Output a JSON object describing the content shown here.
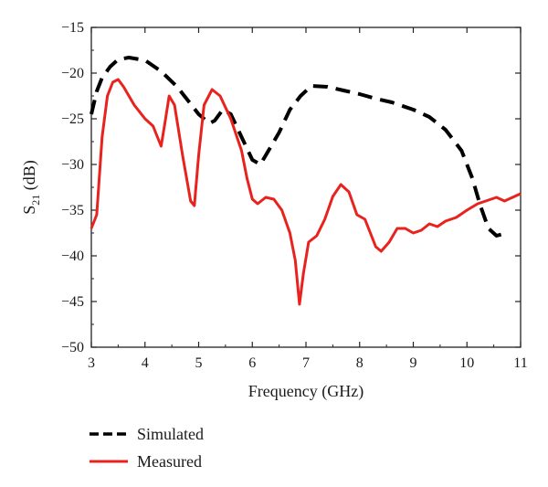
{
  "chart_data": {
    "type": "line",
    "xlabel": "Frequency (GHz)",
    "ylabel": {
      "main": "S",
      "sub": "21",
      "unit": " (dB)"
    },
    "xlim": [
      3,
      11
    ],
    "ylim": [
      -50,
      -15
    ],
    "xticks": [
      "3",
      "4",
      "5",
      "6",
      "7",
      "8",
      "9",
      "10",
      "11"
    ],
    "yticks": [
      "−15",
      "−20",
      "−25",
      "−30",
      "−35",
      "−40",
      "−45",
      "−50"
    ],
    "grid": false,
    "legend_position": "bottom-left",
    "series": [
      {
        "name": "Simulated",
        "color": "#000000",
        "dash": "dashed",
        "x": [
          3.0,
          3.1,
          3.2,
          3.35,
          3.5,
          3.7,
          4.0,
          4.3,
          4.6,
          4.8,
          5.0,
          5.2,
          5.3,
          5.45,
          5.6,
          5.8,
          6.0,
          6.15,
          6.3,
          6.5,
          6.7,
          6.9,
          7.1,
          7.4,
          7.7,
          8.0,
          8.3,
          8.6,
          9.0,
          9.3,
          9.6,
          9.9,
          10.1,
          10.25,
          10.4,
          10.55,
          10.75
        ],
        "y": [
          -24.5,
          -22.0,
          -20.5,
          -19.3,
          -18.5,
          -18.3,
          -18.6,
          -19.8,
          -21.5,
          -23.0,
          -24.5,
          -25.5,
          -25.2,
          -24.0,
          -24.5,
          -27.0,
          -29.5,
          -30.0,
          -28.5,
          -26.5,
          -24.0,
          -22.5,
          -21.4,
          -21.5,
          -21.9,
          -22.3,
          -22.8,
          -23.2,
          -24.0,
          -24.8,
          -26.2,
          -28.5,
          -31.5,
          -34.5,
          -37.0,
          -37.8,
          -37.5
        ]
      },
      {
        "name": "Measured",
        "color": "#e8231e",
        "dash": "solid",
        "x": [
          3.0,
          3.1,
          3.2,
          3.3,
          3.4,
          3.5,
          3.6,
          3.8,
          4.0,
          4.15,
          4.3,
          4.37,
          4.45,
          4.55,
          4.7,
          4.85,
          4.92,
          5.0,
          5.1,
          5.25,
          5.4,
          5.6,
          5.8,
          5.9,
          6.0,
          6.1,
          6.25,
          6.4,
          6.55,
          6.7,
          6.8,
          6.88,
          6.95,
          7.05,
          7.2,
          7.35,
          7.5,
          7.65,
          7.8,
          7.95,
          8.1,
          8.2,
          8.3,
          8.4,
          8.55,
          8.7,
          8.85,
          9.0,
          9.15,
          9.3,
          9.45,
          9.6,
          9.8,
          10.0,
          10.2,
          10.4,
          10.55,
          10.7,
          10.85,
          11.0
        ],
        "y": [
          -37.0,
          -35.5,
          -27.0,
          -22.5,
          -21.0,
          -20.7,
          -21.5,
          -23.5,
          -25.0,
          -25.8,
          -28.0,
          -25.5,
          -22.5,
          -23.5,
          -29.0,
          -34.0,
          -34.5,
          -29.0,
          -23.5,
          -21.8,
          -22.5,
          -25.0,
          -28.5,
          -31.5,
          -33.8,
          -34.3,
          -33.6,
          -33.8,
          -35.0,
          -37.5,
          -40.5,
          -45.3,
          -42.0,
          -38.5,
          -37.8,
          -36.0,
          -33.5,
          -32.2,
          -33.0,
          -35.5,
          -36.0,
          -37.5,
          -39.0,
          -39.5,
          -38.5,
          -37.0,
          -37.0,
          -37.5,
          -37.2,
          -36.5,
          -36.8,
          -36.2,
          -35.8,
          -35.0,
          -34.3,
          -33.9,
          -33.6,
          -34.0,
          -33.6,
          -33.2
        ]
      }
    ]
  }
}
